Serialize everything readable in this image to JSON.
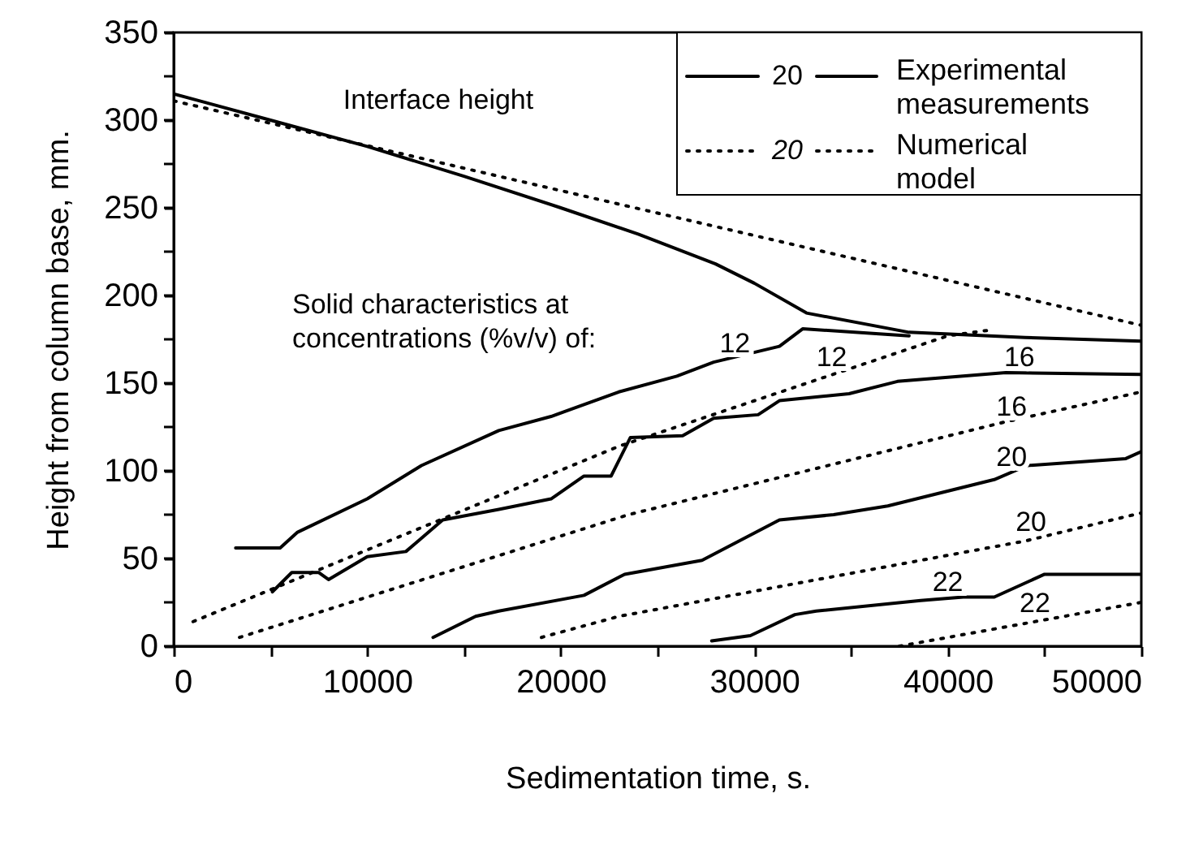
{
  "chart_data": {
    "type": "line",
    "xlabel": "Sedimentation time, s.",
    "ylabel": "Height from column base, mm.",
    "xlim": [
      0,
      50000
    ],
    "ylim": [
      0,
      350
    ],
    "xticks": [
      0,
      {
        "value": 5000,
        "label": null
      },
      10000,
      {
        "value": 15000,
        "label": null
      },
      20000,
      {
        "value": 25000,
        "label": null
      },
      30000,
      {
        "value": 35000,
        "label": null
      },
      40000,
      {
        "value": 45000,
        "label": null
      },
      50000
    ],
    "yticks": [
      0,
      {
        "value": 25,
        "label": null
      },
      50,
      {
        "value": 75,
        "label": null
      },
      100,
      {
        "value": 125,
        "label": null
      },
      150,
      {
        "value": 175,
        "label": null
      },
      200,
      {
        "value": 225,
        "label": null
      },
      250,
      {
        "value": 275,
        "label": null
      },
      300,
      {
        "value": 325,
        "label": null
      },
      350
    ],
    "grid": false,
    "legend": "top right",
    "marker": "none",
    "series": [
      {
        "name": "Experimental measurements",
        "color": "#000000",
        "line_style": "solid",
        "x": [
          0,
          5000,
          10000,
          15000,
          20000,
          24000,
          28000,
          30000,
          32700,
          38000,
          44000,
          50000
        ],
        "values": [
          315,
          300,
          285,
          268,
          250,
          235,
          218,
          207,
          190,
          179,
          176,
          174
        ]
      },
      {
        "name": "Numerical model",
        "color": "#000000",
        "line_style": "dotted",
        "x": [
          0,
          50000
        ],
        "values": [
          311,
          183
        ]
      },
      {
        "color": "#000000",
        "line_style": "solid",
        "x": [
          3200,
          5500,
          6400,
          10000,
          12800,
          16800,
          19500,
          23000,
          26000,
          27900,
          31300,
          32500,
          38000
        ],
        "values": [
          56,
          56,
          65,
          84,
          103,
          123,
          131,
          145,
          154,
          162,
          171,
          181,
          177
        ]
      },
      {
        "color": "#000000",
        "line_style": "dotted",
        "x": [
          1000,
          23000,
          40000,
          42000
        ],
        "values": [
          14,
          114,
          177,
          180
        ]
      },
      {
        "color": "#000000",
        "line_style": "solid",
        "x": [
          5100,
          6100,
          7500,
          8000,
          10000,
          12000,
          13900,
          16800,
          19500,
          21200,
          22600,
          23600,
          26300,
          27900,
          30200,
          31300,
          34900,
          37400,
          43000,
          50000
        ],
        "values": [
          31,
          42,
          42,
          38,
          51,
          54,
          72,
          78,
          84,
          97,
          97,
          119,
          120,
          130,
          132,
          140,
          144,
          151,
          156,
          155
        ]
      },
      {
        "color": "#000000",
        "line_style": "dotted",
        "x": [
          3400,
          23500,
          43000,
          50000
        ],
        "values": [
          5,
          75,
          128,
          145
        ]
      },
      {
        "color": "#000000",
        "line_style": "solid",
        "x": [
          13400,
          15600,
          16800,
          21200,
          23300,
          27300,
          31300,
          34100,
          36900,
          42400,
          44100,
          49200,
          50000
        ],
        "values": [
          5,
          17,
          20,
          29,
          41,
          49,
          72,
          75,
          80,
          95,
          103,
          107,
          111
        ]
      },
      {
        "color": "#000000",
        "line_style": "dotted",
        "x": [
          19000,
          23000,
          44000,
          50000
        ],
        "values": [
          5,
          17,
          60,
          76
        ]
      },
      {
        "color": "#000000",
        "line_style": "solid",
        "x": [
          27800,
          29800,
          32100,
          33200,
          38600,
          40800,
          42400,
          45000,
          50000
        ],
        "values": [
          3,
          6,
          18,
          20,
          26,
          28,
          28,
          41,
          41
        ]
      },
      {
        "color": "#000000",
        "line_style": "dotted",
        "x": [
          37500,
          50000
        ],
        "values": [
          0,
          25
        ]
      }
    ],
    "annotations": [
      "Interface height",
      {
        "text": "12",
        "x": 29000,
        "y": 163
      },
      {
        "text": "12",
        "x": 34000,
        "y": 155
      },
      {
        "text": "16",
        "x": 43700,
        "y": 155
      },
      {
        "text": "16",
        "x": 43300,
        "y": 127
      },
      {
        "text": "20",
        "x": 43300,
        "y": 98
      },
      {
        "text": "20",
        "x": 44300,
        "y": 61
      },
      {
        "text": "22",
        "x": 40000,
        "y": 27
      },
      {
        "text": "22",
        "x": 44500,
        "y": 15
      },
      "Solid characteristics at concentrations (%v/v) of:",
      "20",
      "20"
    ]
  }
}
